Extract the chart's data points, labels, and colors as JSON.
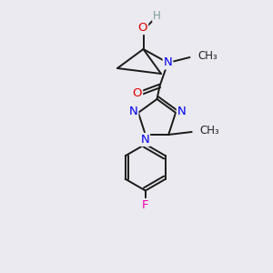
{
  "background_color": "#eaeaf0",
  "atom_colors": {
    "C": "#000000",
    "H": "#7a9a9a",
    "O": "#dd0000",
    "N": "#0000ee",
    "F": "#ee00aa"
  },
  "bond_color": "#1a1a1a",
  "bond_width": 1.4,
  "font_size_atom": 9.5,
  "font_size_small": 8.5
}
